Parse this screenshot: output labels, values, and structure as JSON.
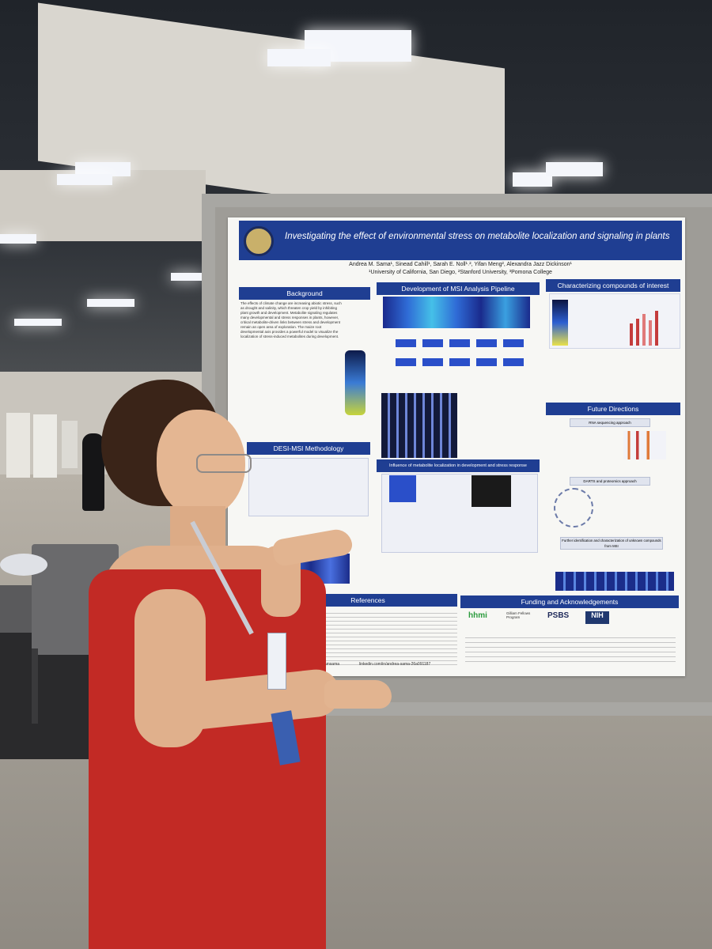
{
  "poster": {
    "title": "Investigating the effect of environmental stress on metabolite localization and signaling in plants",
    "authors": "Andrea M. Sama¹, Sinead Cahill¹, Sarah E. Noll¹˒², Yifan Meng², Alexandra Jazz Dickinson¹",
    "affiliations": "¹University of California, San Diego, ²Stanford University, ³Pomona College",
    "sections": {
      "background": "Background",
      "desi": "DESI-MSI Methodology",
      "pipeline": "Development of MSI Analysis Pipeline",
      "influence": "Influence of metabolite localization in development and stress response",
      "characterizing": "Characterizing compounds of interest",
      "future": "Future Directions",
      "references": "References",
      "funding": "Funding and Acknowledgements"
    },
    "future_items": {
      "rna": "RNA sequencing approach",
      "darts": "DARTS and proteomics approach",
      "further": "Further identification and characterization of unknown compounds from MSI"
    },
    "background_text": "The effects of climate change are increasing abiotic stress, such as drought and salinity, which threaten crop yield by inhibiting plant growth and development. Metabolite signaling regulates many developmental and stress responses in plants, however, critical metabolite-driven links between stress and development remain an open area of exploration. The maize root developmental axis provides a powerful model to visualize the localization of stress-induced metabolites during development.",
    "funders": [
      "hhmi",
      "Gilliam Fellows Program",
      "PSBS",
      "NIH"
    ],
    "contact": "linkedin.com/in/andrea-sama-26a091187",
    "handle": "@andreamsama"
  }
}
